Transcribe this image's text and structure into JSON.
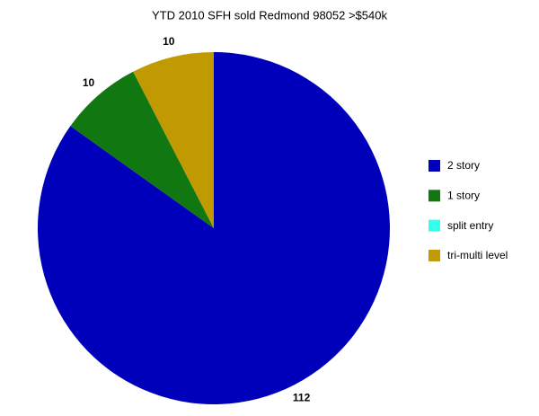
{
  "chart_data": {
    "type": "pie",
    "title": "YTD 2010 SFH sold Redmond 98052 >$540k",
    "categories": [
      "2 story",
      "1 story",
      "split entry",
      "tri-multi level"
    ],
    "values": [
      112,
      10,
      0,
      10
    ],
    "colors": [
      "#0000bb",
      "#117711",
      "#33ffee",
      "#c09a00"
    ],
    "legend": "right"
  }
}
